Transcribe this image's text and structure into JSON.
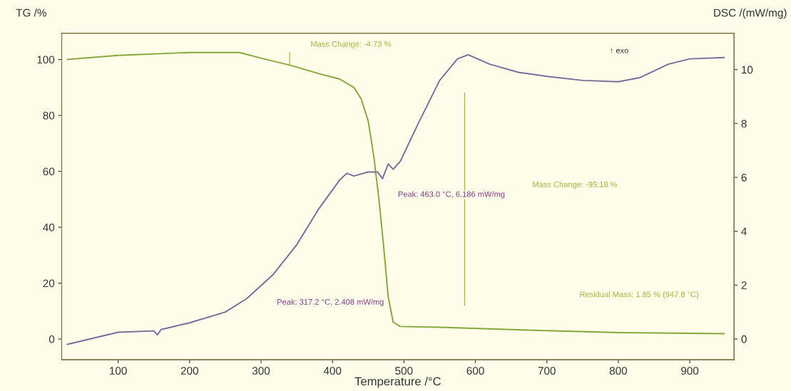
{
  "chart_data": {
    "type": "line",
    "xlabel": "Temperature /°C",
    "ylabel": "TG /%",
    "y2label": "DSC /(mW/mg)",
    "xlim": [
      21,
      962
    ],
    "xticks": [
      100,
      200,
      300,
      400,
      500,
      600,
      700,
      800,
      900
    ],
    "ylim": [
      -7.4,
      109.4
    ],
    "yticks": [
      0,
      20,
      40,
      60,
      80,
      100
    ],
    "y2lim": [
      -0.77,
      11.35
    ],
    "y2ticks": [
      0,
      2,
      4,
      6,
      8,
      10
    ],
    "grid": false,
    "legend": false,
    "series": [
      {
        "color": "#86a83a",
        "x": [
          29,
          100,
          200,
          270,
          300,
          340,
          380,
          410,
          430,
          440,
          450,
          458,
          465,
          472,
          478,
          485,
          495,
          550,
          700,
          800,
          948
        ],
        "values": [
          100,
          101.5,
          102.5,
          102.5,
          100.5,
          98,
          95,
          93,
          90,
          86,
          78,
          65,
          50,
          32,
          15,
          6,
          4.5,
          4.2,
          3.0,
          2.3,
          1.9
        ]
      },
      {
        "color": "#7f6a9e",
        "axis": "y2",
        "x": [
          29,
          100,
          150,
          155,
          160,
          200,
          250,
          280,
          317.2,
          350,
          380,
          410,
          420,
          430,
          450,
          463,
          470,
          478,
          485,
          495,
          520,
          550,
          575,
          590,
          620,
          660,
          700,
          750,
          800,
          830,
          870,
          900,
          948
        ],
        "values": [
          -0.2,
          0.25,
          0.3,
          0.15,
          0.35,
          0.6,
          1.0,
          1.5,
          2.4,
          3.5,
          4.8,
          5.9,
          6.15,
          6.05,
          6.2,
          6.2,
          5.95,
          6.5,
          6.3,
          6.6,
          8.0,
          9.6,
          10.4,
          10.55,
          10.2,
          9.9,
          9.75,
          9.6,
          9.55,
          9.7,
          10.2,
          10.4,
          10.45
        ]
      },
      {
        "color": "#a3b63a",
        "x": [
          340,
          340
        ],
        "values": [
          102.5,
          97.8
        ]
      },
      {
        "color": "#a3b63a",
        "x": [
          585,
          585
        ],
        "values": [
          88,
          12
        ]
      }
    ],
    "annotations": [
      "Mass Change: -4.73 %",
      "↑ exo",
      "Peak: 463.0 °C, 6.186 mW/mg",
      "Mass Change: -95.18 %",
      "Peak: 317.2 °C, 2.408 mW/mg",
      "Residual Mass: 1.85 % (947.8 °C)"
    ]
  }
}
